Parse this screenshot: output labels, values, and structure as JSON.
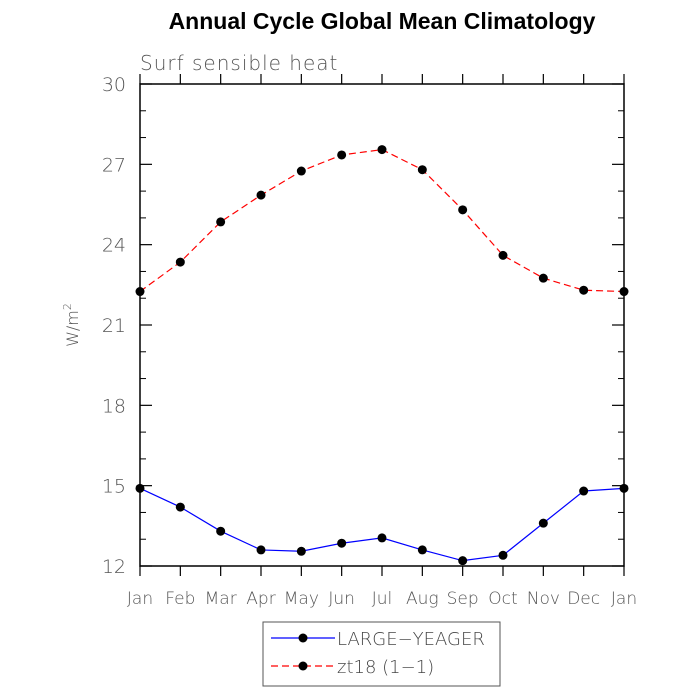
{
  "chart_data": {
    "type": "line",
    "title": "Annual Cycle Global Mean Climatology",
    "subtitle": "Surf sensible heat",
    "xlabel": "",
    "ylabel": "W/m",
    "ylabel_superscript": "2",
    "ylim": [
      12,
      30
    ],
    "yticks": [
      12,
      15,
      18,
      21,
      24,
      27,
      30
    ],
    "categories": [
      "Jan",
      "Feb",
      "Mar",
      "Apr",
      "May",
      "Jun",
      "Jul",
      "Aug",
      "Sep",
      "Oct",
      "Nov",
      "Dec",
      "Jan"
    ],
    "series": [
      {
        "name": "LARGE−YEAGER",
        "color": "#0000ff",
        "dash": "solid",
        "values": [
          14.9,
          14.2,
          13.3,
          12.6,
          12.55,
          12.85,
          13.05,
          12.6,
          12.2,
          12.4,
          13.6,
          14.8,
          14.9
        ]
      },
      {
        "name": "zt18 (1−1)",
        "color": "#ff0000",
        "dash": "dashed",
        "values": [
          22.25,
          23.35,
          24.85,
          25.85,
          26.75,
          27.35,
          27.55,
          26.8,
          25.3,
          23.6,
          22.75,
          22.3,
          22.25
        ]
      }
    ],
    "legend_position": "bottom"
  }
}
